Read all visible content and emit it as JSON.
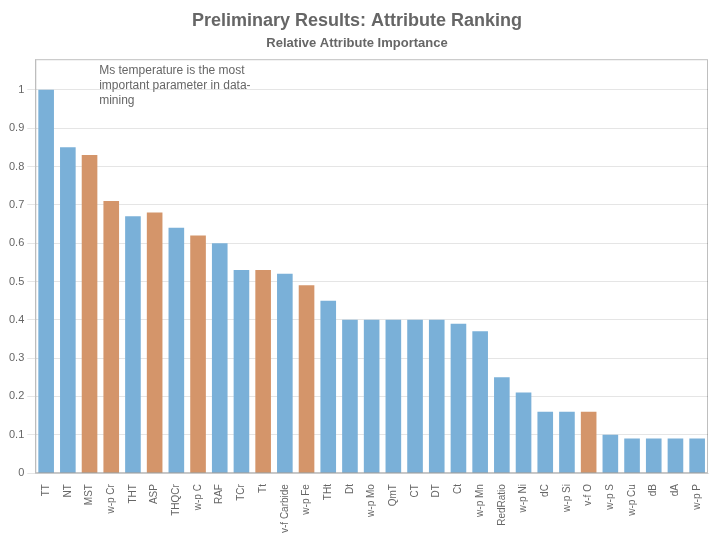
{
  "chart_data": {
    "type": "bar",
    "title": "Preliminary Results: Attribute Ranking",
    "subtitle": "Relative Attribute Importance",
    "annotation": "Ms temperature is the most\nimportant parameter in data-\nmining",
    "categories": [
      "TT",
      "NT",
      "MST",
      "w-p Cr",
      "THT",
      "ASP",
      "THQCr",
      "w-p C",
      "RAF",
      "TCr",
      "Tt",
      "v-f Carbide",
      "w-p Fe",
      "THt",
      "Dt",
      "w-p Mo",
      "QmT",
      "CT",
      "DT",
      "Ct",
      "w-p Mn",
      "RedRatio",
      "w-p Ni",
      "dC",
      "w-p Si",
      "v-f O",
      "w-p S",
      "w-p Cu",
      "dB",
      "dA",
      "w-p P"
    ],
    "values": [
      1.0,
      0.85,
      0.83,
      0.71,
      0.67,
      0.68,
      0.64,
      0.62,
      0.6,
      0.53,
      0.53,
      0.52,
      0.49,
      0.45,
      0.4,
      0.4,
      0.4,
      0.4,
      0.4,
      0.39,
      0.37,
      0.25,
      0.21,
      0.16,
      0.16,
      0.16,
      0.1,
      0.09,
      0.09,
      0.09,
      0.09
    ],
    "colors": [
      "#7ab0d8",
      "#7ab0d8",
      "#d4956a",
      "#d4956a",
      "#7ab0d8",
      "#d4956a",
      "#7ab0d8",
      "#d4956a",
      "#7ab0d8",
      "#7ab0d8",
      "#d4956a",
      "#7ab0d8",
      "#d4956a",
      "#7ab0d8",
      "#7ab0d8",
      "#7ab0d8",
      "#7ab0d8",
      "#7ab0d8",
      "#7ab0d8",
      "#7ab0d8",
      "#7ab0d8",
      "#7ab0d8",
      "#7ab0d8",
      "#7ab0d8",
      "#7ab0d8",
      "#d4956a",
      "#7ab0d8",
      "#7ab0d8",
      "#7ab0d8",
      "#7ab0d8",
      "#7ab0d8"
    ],
    "ylim": [
      0,
      1.08
    ],
    "yticks": [
      0,
      0.1,
      0.2,
      0.3,
      0.4,
      0.5,
      0.6,
      0.7,
      0.8,
      0.9,
      1
    ],
    "grid": true
  }
}
